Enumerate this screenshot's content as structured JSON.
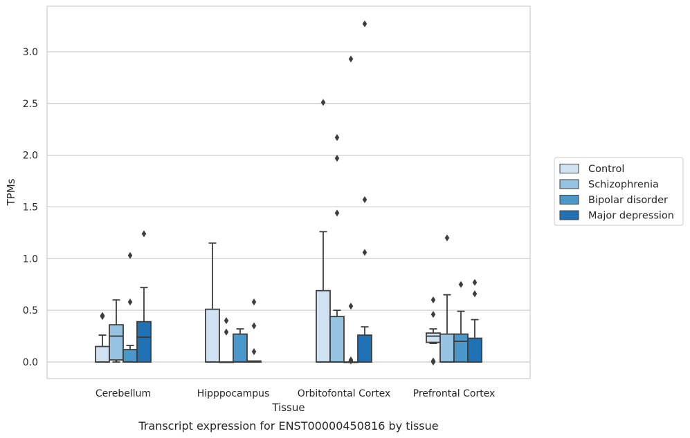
{
  "caption": "Transcript expression for ENST00000450816 by tissue",
  "chart_data": {
    "type": "box",
    "title": "",
    "xlabel": "Tissue",
    "ylabel": "TPMs",
    "ylim": [
      -0.16,
      3.44
    ],
    "yticks": [
      0.0,
      0.5,
      1.0,
      1.5,
      2.0,
      2.5,
      3.0
    ],
    "ytick_labels": [
      "0.0",
      "0.5",
      "1.0",
      "1.5",
      "2.0",
      "2.5",
      "3.0"
    ],
    "grid": "horizontal",
    "legend_position": "right",
    "categories": [
      "Cerebellum",
      "Hipppocampus",
      "Orbitofontal Cortex",
      "Prefrontal Cortex"
    ],
    "series": [
      {
        "name": "Control",
        "color": "#d0e1f2",
        "boxes": [
          {
            "whislo": 0.0,
            "q1": 0.0,
            "med": 0.0,
            "q3": 0.15,
            "whishi": 0.26,
            "fliers": [
              0.44,
              0.45
            ]
          },
          {
            "whislo": 0.0,
            "q1": 0.0,
            "med": 0.0,
            "q3": 0.51,
            "whishi": 1.15,
            "fliers": []
          },
          {
            "whislo": 0.0,
            "q1": 0.0,
            "med": 0.0,
            "q3": 0.69,
            "whishi": 1.26,
            "fliers": [
              2.51
            ]
          },
          {
            "whislo": 0.18,
            "q1": 0.19,
            "med": 0.25,
            "q3": 0.28,
            "whishi": 0.32,
            "fliers": [
              0.6,
              0.46,
              0.01,
              0.0
            ]
          }
        ]
      },
      {
        "name": "Schizophrenia",
        "color": "#94c4df",
        "boxes": [
          {
            "whislo": 0.0,
            "q1": 0.02,
            "med": 0.25,
            "q3": 0.36,
            "whishi": 0.6,
            "fliers": []
          },
          {
            "whislo": 0.0,
            "q1": 0.0,
            "med": 0.0,
            "q3": 0.0,
            "whishi": 0.0,
            "fliers": [
              0.4,
              0.29
            ]
          },
          {
            "whislo": 0.0,
            "q1": 0.0,
            "med": 0.0,
            "q3": 0.44,
            "whishi": 0.5,
            "fliers": [
              2.17,
              1.97,
              1.44
            ]
          },
          {
            "whislo": 0.0,
            "q1": 0.0,
            "med": 0.0,
            "q3": 0.27,
            "whishi": 0.65,
            "fliers": [
              1.2
            ]
          }
        ]
      },
      {
        "name": "Bipolar disorder",
        "color": "#4a98c9",
        "boxes": [
          {
            "whislo": 0.0,
            "q1": 0.0,
            "med": 0.0,
            "q3": 0.12,
            "whishi": 0.16,
            "fliers": [
              1.03,
              0.58
            ]
          },
          {
            "whislo": 0.0,
            "q1": 0.0,
            "med": 0.0,
            "q3": 0.27,
            "whishi": 0.32,
            "fliers": []
          },
          {
            "whislo": 0.0,
            "q1": 0.0,
            "med": 0.0,
            "q3": 0.0,
            "whishi": 0.0,
            "fliers": [
              2.93,
              0.54,
              0.02,
              0.01
            ]
          },
          {
            "whislo": 0.0,
            "q1": 0.0,
            "med": 0.2,
            "q3": 0.27,
            "whishi": 0.49,
            "fliers": [
              0.75
            ]
          }
        ]
      },
      {
        "name": "Major depression",
        "color": "#2171b5",
        "boxes": [
          {
            "whislo": 0.0,
            "q1": 0.0,
            "med": 0.24,
            "q3": 0.39,
            "whishi": 0.72,
            "fliers": [
              1.24
            ]
          },
          {
            "whislo": 0.0,
            "q1": 0.0,
            "med": 0.0,
            "q3": 0.01,
            "whishi": 0.01,
            "fliers": [
              0.58,
              0.35,
              0.1
            ]
          },
          {
            "whislo": 0.0,
            "q1": 0.0,
            "med": 0.0,
            "q3": 0.26,
            "whishi": 0.34,
            "fliers": [
              3.27,
              1.57,
              1.06
            ]
          },
          {
            "whislo": 0.0,
            "q1": 0.0,
            "med": 0.0,
            "q3": 0.23,
            "whishi": 0.41,
            "fliers": [
              0.77,
              0.66
            ]
          }
        ]
      }
    ]
  }
}
